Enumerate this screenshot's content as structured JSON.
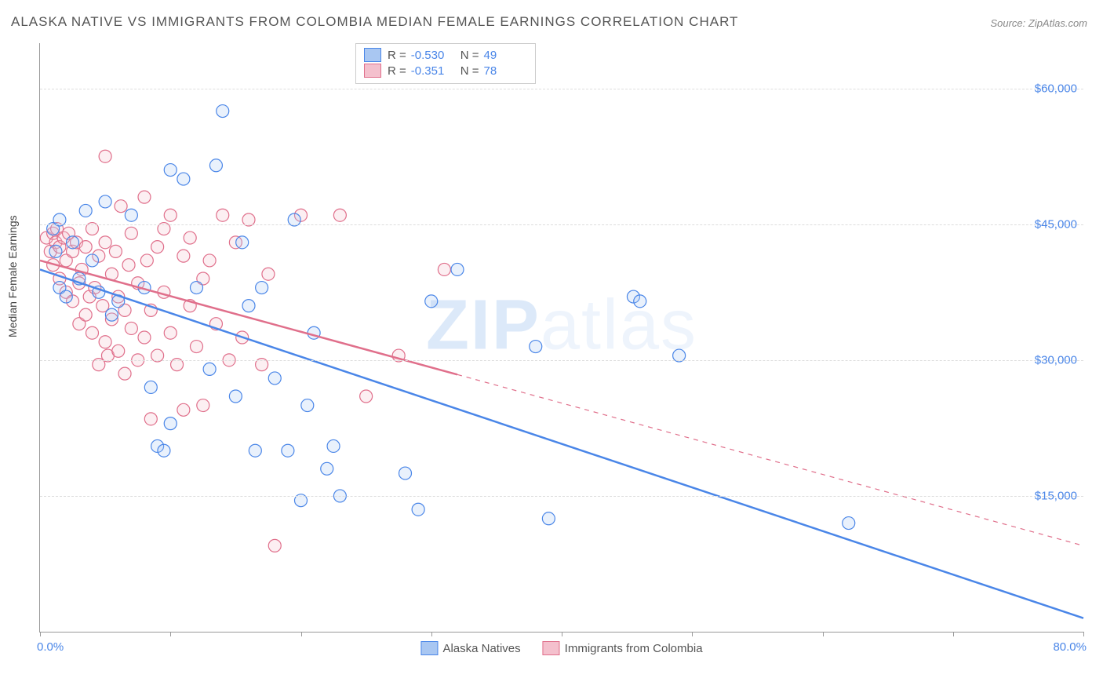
{
  "title": "ALASKA NATIVE VS IMMIGRANTS FROM COLOMBIA MEDIAN FEMALE EARNINGS CORRELATION CHART",
  "source": "Source: ZipAtlas.com",
  "ylabel": "Median Female Earnings",
  "watermark_part1": "ZIP",
  "watermark_part2": "atlas",
  "chart": {
    "type": "scatter-with-regression",
    "xlim": [
      0,
      80
    ],
    "ylim": [
      0,
      65000
    ],
    "x_unit": "%",
    "y_unit": "$",
    "xtick_positions": [
      0,
      10,
      20,
      30,
      40,
      50,
      60,
      70,
      80
    ],
    "xlim_labels": {
      "min": "0.0%",
      "max": "80.0%"
    },
    "yticks": [
      {
        "value": 15000,
        "label": "$15,000"
      },
      {
        "value": 30000,
        "label": "$30,000"
      },
      {
        "value": 45000,
        "label": "$45,000"
      },
      {
        "value": 60000,
        "label": "$60,000"
      }
    ],
    "background_color": "#ffffff",
    "grid_color": "#dddddd",
    "axis_color": "#999999",
    "tick_label_color": "#4a86e8",
    "marker_radius": 8,
    "marker_stroke_width": 1.2,
    "marker_fill_opacity": 0.25,
    "regression_line_width": 2.5,
    "series": [
      {
        "id": "alaska_natives",
        "label": "Alaska Natives",
        "color_stroke": "#4a86e8",
        "color_fill": "#a9c7f2",
        "R": -0.53,
        "N": 49,
        "regression": {
          "x1": 0,
          "y1": 40000,
          "x2": 80,
          "y2": 1500,
          "solid_until_x": 80
        },
        "points": [
          [
            1.0,
            44500
          ],
          [
            1.2,
            42000
          ],
          [
            1.5,
            38000
          ],
          [
            1.5,
            45500
          ],
          [
            2.0,
            37000
          ],
          [
            2.5,
            43000
          ],
          [
            3.0,
            39000
          ],
          [
            3.5,
            46500
          ],
          [
            4.0,
            41000
          ],
          [
            4.5,
            37500
          ],
          [
            5.0,
            47500
          ],
          [
            5.5,
            35000
          ],
          [
            6.0,
            36500
          ],
          [
            7.0,
            46000
          ],
          [
            8.0,
            38000
          ],
          [
            8.5,
            27000
          ],
          [
            9.0,
            20500
          ],
          [
            9.5,
            20000
          ],
          [
            10.0,
            23000
          ],
          [
            10.0,
            51000
          ],
          [
            11.0,
            50000
          ],
          [
            12.0,
            38000
          ],
          [
            13.0,
            29000
          ],
          [
            13.5,
            51500
          ],
          [
            14.0,
            57500
          ],
          [
            15.0,
            26000
          ],
          [
            15.5,
            43000
          ],
          [
            16.0,
            36000
          ],
          [
            16.5,
            20000
          ],
          [
            17.0,
            38000
          ],
          [
            18.0,
            28000
          ],
          [
            19.0,
            20000
          ],
          [
            19.5,
            45500
          ],
          [
            20.0,
            14500
          ],
          [
            20.5,
            25000
          ],
          [
            21.0,
            33000
          ],
          [
            22.0,
            18000
          ],
          [
            22.5,
            20500
          ],
          [
            23.0,
            15000
          ],
          [
            28.0,
            17500
          ],
          [
            29.0,
            13500
          ],
          [
            30.0,
            36500
          ],
          [
            32.0,
            40000
          ],
          [
            38.0,
            31500
          ],
          [
            39.0,
            12500
          ],
          [
            45.5,
            37000
          ],
          [
            46.0,
            36500
          ],
          [
            62.0,
            12000
          ],
          [
            49.0,
            30500
          ]
        ]
      },
      {
        "id": "immigrants_colombia",
        "label": "Immigrants from Colombia",
        "color_stroke": "#e06f8b",
        "color_fill": "#f4c0cd",
        "R": -0.351,
        "N": 78,
        "regression": {
          "x1": 0,
          "y1": 41000,
          "x2": 80,
          "y2": 9500,
          "solid_until_x": 32
        },
        "points": [
          [
            0.5,
            43500
          ],
          [
            0.8,
            42000
          ],
          [
            1.0,
            44000
          ],
          [
            1.0,
            40500
          ],
          [
            1.2,
            43000
          ],
          [
            1.3,
            44500
          ],
          [
            1.5,
            42500
          ],
          [
            1.5,
            39000
          ],
          [
            1.8,
            43500
          ],
          [
            2.0,
            41000
          ],
          [
            2.0,
            37500
          ],
          [
            2.2,
            44000
          ],
          [
            2.5,
            42000
          ],
          [
            2.5,
            36500
          ],
          [
            2.8,
            43000
          ],
          [
            3.0,
            38500
          ],
          [
            3.0,
            34000
          ],
          [
            3.2,
            40000
          ],
          [
            3.5,
            42500
          ],
          [
            3.5,
            35000
          ],
          [
            3.8,
            37000
          ],
          [
            4.0,
            44500
          ],
          [
            4.0,
            33000
          ],
          [
            4.2,
            38000
          ],
          [
            4.5,
            41500
          ],
          [
            4.5,
            29500
          ],
          [
            4.8,
            36000
          ],
          [
            5.0,
            43000
          ],
          [
            5.0,
            32000
          ],
          [
            5.0,
            52500
          ],
          [
            5.2,
            30500
          ],
          [
            5.5,
            39500
          ],
          [
            5.5,
            34500
          ],
          [
            5.8,
            42000
          ],
          [
            6.0,
            37000
          ],
          [
            6.0,
            31000
          ],
          [
            6.2,
            47000
          ],
          [
            6.5,
            35500
          ],
          [
            6.5,
            28500
          ],
          [
            6.8,
            40500
          ],
          [
            7.0,
            33500
          ],
          [
            7.0,
            44000
          ],
          [
            7.5,
            38500
          ],
          [
            7.5,
            30000
          ],
          [
            8.0,
            48000
          ],
          [
            8.0,
            32500
          ],
          [
            8.2,
            41000
          ],
          [
            8.5,
            35500
          ],
          [
            8.5,
            23500
          ],
          [
            9.0,
            42500
          ],
          [
            9.0,
            30500
          ],
          [
            9.5,
            37500
          ],
          [
            9.5,
            44500
          ],
          [
            10.0,
            33000
          ],
          [
            10.0,
            46000
          ],
          [
            10.5,
            29500
          ],
          [
            11.0,
            41500
          ],
          [
            11.0,
            24500
          ],
          [
            11.5,
            36000
          ],
          [
            11.5,
            43500
          ],
          [
            12.0,
            31500
          ],
          [
            12.5,
            39000
          ],
          [
            12.5,
            25000
          ],
          [
            13.0,
            41000
          ],
          [
            13.5,
            34000
          ],
          [
            14.0,
            46000
          ],
          [
            14.5,
            30000
          ],
          [
            15.0,
            43000
          ],
          [
            15.5,
            32500
          ],
          [
            16.0,
            45500
          ],
          [
            17.0,
            29500
          ],
          [
            17.5,
            39500
          ],
          [
            18.0,
            9500
          ],
          [
            20.0,
            46000
          ],
          [
            23.0,
            46000
          ],
          [
            25.0,
            26000
          ],
          [
            27.5,
            30500
          ],
          [
            31.0,
            40000
          ]
        ]
      }
    ]
  },
  "legend_top": {
    "R_label": "R =",
    "N_label": "N ="
  }
}
